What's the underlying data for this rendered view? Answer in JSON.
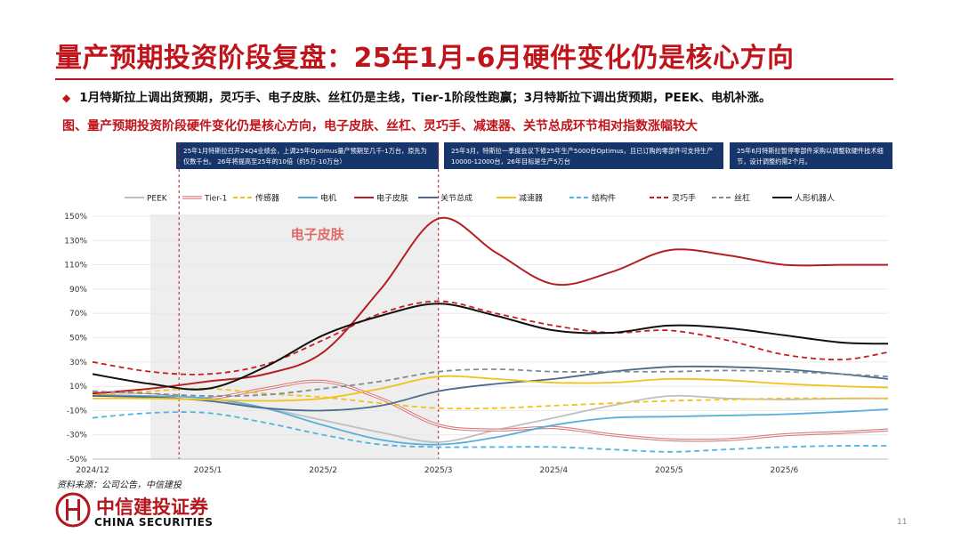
{
  "header": {
    "title": "量产预期投资阶段复盘：25年1月-6月硬件变化仍是核心方向",
    "bullet": "1月特斯拉上调出货预期，灵巧手、电子皮肤、丝杠仍是主线，Tier-1阶段性跑赢；3月特斯拉下调出货预期，PEEK、电机补涨。",
    "subtitle": "图、量产预期投资阶段硬件变化仍是核心方向，电子皮肤、丝杠、灵巧手、减速器、关节总成环节相对指数涨幅较大"
  },
  "notes": {
    "jan": "25年1月特斯拉召开24Q4业绩会，上调25年Optimus量产预期至几千-1万台，原先为仅数千台。 26年将提高至25年的10倍（约5万-10万台）",
    "mar": "25年3月，特斯拉一季度会议下修25年生产5000台Optimus，且已订购的零部件可支持生产10000-12000台，26年目标是生产5万台",
    "jun": "25年6月特斯拉暂停零部件采购以调整软硬件技术细节，设计调整约需2个月。"
  },
  "footer": {
    "source": "资料来源：公司公告，中信建投",
    "logo_cn": "中信建投证券",
    "logo_en": "CHINA SECURITIES",
    "page_number": "11"
  },
  "chart_data": {
    "type": "line",
    "title": "",
    "xlabel": "",
    "ylabel": "",
    "x": [
      0,
      0.5,
      1,
      1.5,
      2,
      2.5,
      3,
      3.5,
      4,
      4.5,
      5,
      5.5,
      6,
      6.5,
      7
    ],
    "x_tick_positions": [
      0,
      1,
      2,
      3,
      4,
      5,
      6
    ],
    "x_tick_labels": [
      "2024/12",
      "2025/1",
      "2025/2",
      "2025/3",
      "2025/4",
      "2025/5",
      "2025/6"
    ],
    "xlim": [
      0,
      6.9
    ],
    "ylim": [
      -50,
      150
    ],
    "y_ticks": [
      -50,
      -30,
      -10,
      10,
      30,
      50,
      70,
      90,
      110,
      130,
      150
    ],
    "y_tick_labels": [
      "-50%",
      "-30%",
      "-10%",
      "10%",
      "30%",
      "50%",
      "70%",
      "90%",
      "110%",
      "130%",
      "150%"
    ],
    "shaded_range": [
      0.5,
      3
    ],
    "vlines": [
      0.75,
      3
    ],
    "annotation": {
      "text": "电子皮肤",
      "x": 1.95,
      "y": 135
    },
    "series": [
      {
        "name": "PEEK",
        "color": "#bfbfbf",
        "style": "solid",
        "values": [
          4,
          3,
          0,
          -8,
          -18,
          -28,
          -36,
          -26,
          -16,
          -6,
          2,
          0,
          -1,
          0,
          0
        ]
      },
      {
        "name": "Tier-1",
        "color": "#d97b7b",
        "style": "double",
        "values": [
          4,
          3,
          0,
          8,
          14,
          0,
          -22,
          -26,
          -24,
          -30,
          -34,
          -34,
          -30,
          -28,
          -26
        ]
      },
      {
        "name": "传感器",
        "color": "#f2c21b",
        "style": "dashed",
        "values": [
          3,
          6,
          8,
          4,
          1,
          -4,
          -8,
          -8,
          -6,
          -4,
          -2,
          -1,
          0,
          0,
          0
        ]
      },
      {
        "name": "电机",
        "color": "#5aaedc",
        "style": "solid",
        "values": [
          2,
          2,
          0,
          -8,
          -22,
          -34,
          -38,
          -32,
          -22,
          -16,
          -15,
          -14,
          -13,
          -11,
          -9
        ]
      },
      {
        "name": "电子皮肤",
        "color": "#b51f24",
        "style": "solid",
        "values": [
          4,
          8,
          14,
          20,
          38,
          90,
          148,
          120,
          94,
          104,
          122,
          118,
          110,
          110,
          110
        ]
      },
      {
        "name": "关节总成",
        "color": "#4c6b8a",
        "style": "solid",
        "values": [
          2,
          1,
          -2,
          -8,
          -10,
          -6,
          6,
          12,
          16,
          22,
          26,
          26,
          24,
          20,
          16
        ]
      },
      {
        "name": "减速器",
        "color": "#f2c21b",
        "style": "solid",
        "values": [
          0,
          0,
          -1,
          -2,
          0,
          8,
          18,
          16,
          13,
          13,
          16,
          15,
          12,
          10,
          9
        ]
      },
      {
        "name": "结构件",
        "color": "#4fb4df",
        "style": "dashed",
        "values": [
          -16,
          -12,
          -12,
          -20,
          -30,
          -38,
          -40,
          -40,
          -40,
          -42,
          -44,
          -42,
          -40,
          -39,
          -39
        ]
      },
      {
        "name": "灵巧手",
        "color": "#c41e24",
        "style": "dashed",
        "values": [
          30,
          22,
          20,
          28,
          48,
          70,
          80,
          70,
          60,
          54,
          56,
          48,
          36,
          32,
          38
        ]
      },
      {
        "name": "丝杠",
        "color": "#7c8d99",
        "style": "dashed",
        "values": [
          6,
          4,
          2,
          3,
          8,
          14,
          22,
          24,
          22,
          22,
          22,
          23,
          22,
          20,
          18
        ]
      },
      {
        "name": "人形机器人",
        "color": "#111111",
        "style": "solid",
        "values": [
          20,
          12,
          8,
          26,
          52,
          68,
          78,
          68,
          56,
          54,
          60,
          58,
          52,
          46,
          45
        ]
      }
    ]
  }
}
